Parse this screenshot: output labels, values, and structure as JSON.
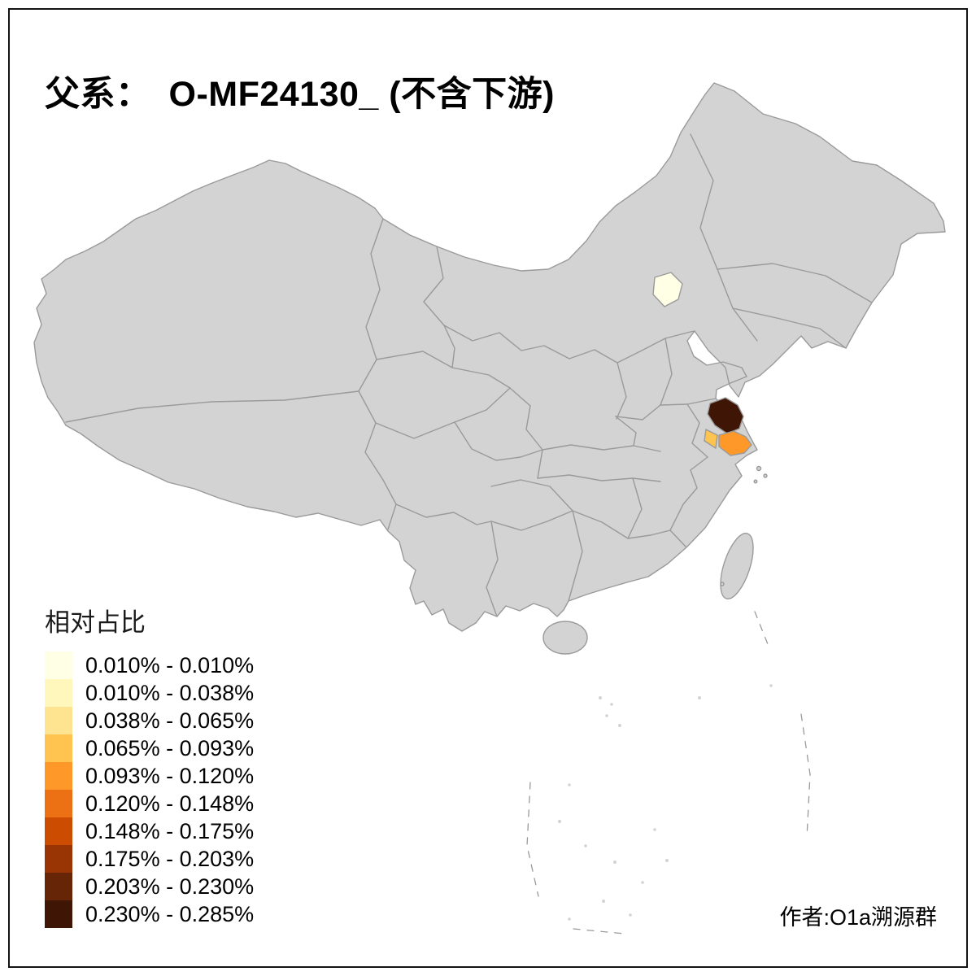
{
  "title": "父系：　O-MF24130_ (不含下游)",
  "author": "作者:O1a溯源群",
  "legend": {
    "title": "相对占比",
    "items": [
      {
        "range": "0.010% - 0.010%",
        "color": "#FFFFE5"
      },
      {
        "range": "0.010% - 0.038%",
        "color": "#FFF7BC"
      },
      {
        "range": "0.038% - 0.065%",
        "color": "#FEE391"
      },
      {
        "range": "0.065% - 0.093%",
        "color": "#FEC44F"
      },
      {
        "range": "0.093% - 0.120%",
        "color": "#FE9929"
      },
      {
        "range": "0.120% - 0.148%",
        "color": "#EC7014"
      },
      {
        "range": "0.148% - 0.175%",
        "color": "#CC4C02"
      },
      {
        "range": "0.175% - 0.203%",
        "color": "#993404"
      },
      {
        "range": "0.203% - 0.230%",
        "color": "#662506"
      },
      {
        "range": "0.230% - 0.285%",
        "color": "#3F1505"
      }
    ]
  },
  "map": {
    "land_fill": "#D3D3D3",
    "border_color": "#9A9A9A",
    "ocean_fill": "#FFFFFF",
    "regions": {
      "beijing": "#FFFFE5",
      "jiangsu": "#3F1505",
      "jiangsu_south": "#FEC44F",
      "shanghai": "#FE9929"
    }
  }
}
